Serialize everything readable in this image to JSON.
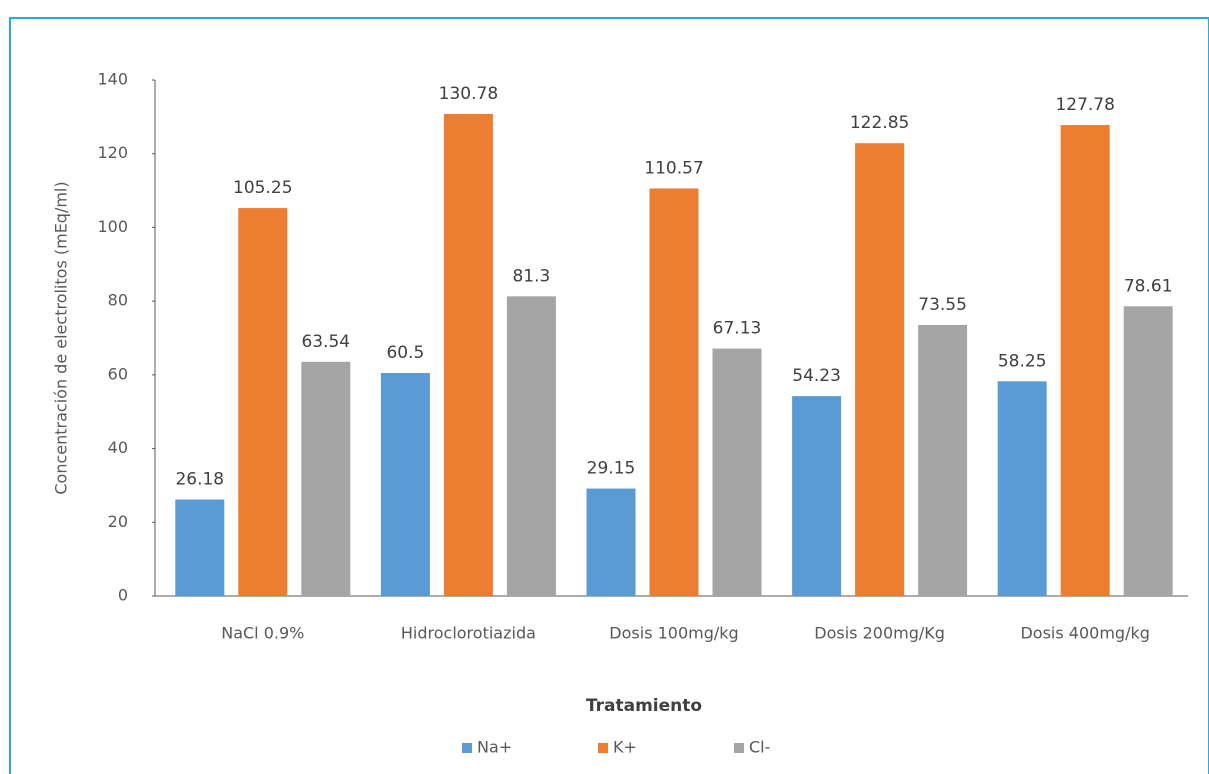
{
  "chart_data": {
    "type": "bar",
    "x_label": "Tratamiento",
    "y_label": "Concentración de electrolitos (mEq/ml)",
    "categories": [
      "NaCl 0.9%",
      "Hidroclorotiazida",
      "Dosis 100mg/kg",
      "Dosis 200mg/Kg",
      "Dosis 400mg/kg"
    ],
    "series": [
      {
        "name": "Na+",
        "color": "#5b9bd5",
        "values": [
          26.18,
          60.5,
          29.15,
          54.23,
          58.25
        ]
      },
      {
        "name": "K+",
        "color": "#ed7d31",
        "values": [
          105.25,
          130.78,
          110.57,
          122.85,
          127.78
        ]
      },
      {
        "name": "Cl-",
        "color": "#a5a5a5",
        "values": [
          63.54,
          81.3,
          67.13,
          73.55,
          78.61
        ]
      }
    ],
    "ylim": [
      0,
      140
    ],
    "yticks": [
      0,
      20,
      40,
      60,
      80,
      100,
      120,
      140
    ],
    "legend": "bottom"
  }
}
